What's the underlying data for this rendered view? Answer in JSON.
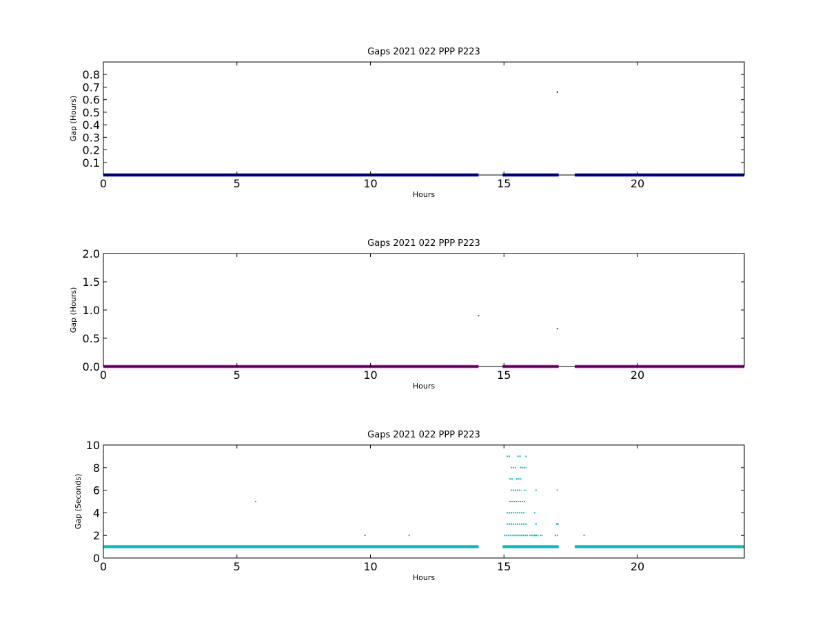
{
  "chart_data": [
    {
      "type": "scatter",
      "title": "Gaps 2021 022 PPP  P223",
      "xlabel": "Hours",
      "ylabel": "Gap (Hours)",
      "xlim": [
        0,
        24
      ],
      "ylim": [
        0,
        0.9
      ],
      "xticks": [
        "0",
        "5",
        "10",
        "15",
        "20"
      ],
      "xtick_values": [
        0,
        5,
        10,
        15,
        20
      ],
      "yticks": [
        "0.1",
        "0.2",
        "0.3",
        "0.4",
        "0.5",
        "0.6",
        "0.7",
        "0.8"
      ],
      "ytick_values": [
        0.1,
        0.2,
        0.3,
        0.4,
        0.5,
        0.6,
        0.7,
        0.8
      ],
      "grid": false,
      "color": "#0000cc",
      "series": [
        {
          "baseline_value": 0.0003,
          "baseline_ranges": [
            [
              0,
              14.05
            ],
            [
              14.95,
              17.05
            ],
            [
              17.65,
              24
            ]
          ],
          "points": [
            {
              "x": 5.7,
              "y": 0.003
            },
            {
              "x": 17.0,
              "y": 0.66
            }
          ]
        }
      ]
    },
    {
      "type": "scatter",
      "title": "Gaps 2021 022 PPP  P223",
      "xlabel": "Hours",
      "ylabel": "Gap (Hours)",
      "xlim": [
        0,
        24
      ],
      "ylim": [
        0,
        2.0
      ],
      "xticks": [
        "0",
        "5",
        "10",
        "15",
        "20"
      ],
      "xtick_values": [
        0,
        5,
        10,
        15,
        20
      ],
      "yticks": [
        "0.0",
        "0.5",
        "1.0",
        "1.5",
        "2.0"
      ],
      "ytick_values": [
        0,
        0.5,
        1.0,
        1.5,
        2.0
      ],
      "grid": false,
      "color": "#bf00bf",
      "series": [
        {
          "baseline_value": 0.0003,
          "baseline_ranges": [
            [
              0,
              14.05
            ],
            [
              14.95,
              17.05
            ],
            [
              17.65,
              24
            ]
          ],
          "points": [
            {
              "x": 14.05,
              "y": 0.9
            },
            {
              "x": 17.0,
              "y": 0.67
            }
          ]
        }
      ]
    },
    {
      "type": "scatter",
      "title": "Gaps 2021 022 PPP  P223",
      "xlabel": "Hours",
      "ylabel": "Gap (Seconds)",
      "xlim": [
        0,
        24
      ],
      "ylim": [
        0,
        10
      ],
      "xticks": [
        "0",
        "5",
        "10",
        "15",
        "20"
      ],
      "xtick_values": [
        0,
        5,
        10,
        15,
        20
      ],
      "yticks": [
        "0",
        "2",
        "4",
        "6",
        "8",
        "10"
      ],
      "ytick_values": [
        0,
        2,
        4,
        6,
        8,
        10
      ],
      "grid": false,
      "color": "#00bfbf",
      "series": [
        {
          "baseline_value": 1,
          "baseline_ranges": [
            [
              0,
              14.05
            ],
            [
              14.95,
              17.05
            ],
            [
              17.65,
              24
            ]
          ],
          "points": [
            {
              "x": 5.7,
              "y": 5
            },
            {
              "x": 9.8,
              "y": 2
            },
            {
              "x": 11.45,
              "y": 2
            },
            {
              "x": 18.0,
              "y": 2
            },
            {
              "x": 16.2,
              "y": 6
            },
            {
              "x": 17.0,
              "y": 6
            },
            {
              "x": 16.15,
              "y": 4
            },
            {
              "x": 16.2,
              "y": 3
            },
            {
              "x": 17.0,
              "y": 3
            },
            {
              "x": 16.15,
              "y": 2
            }
          ],
          "segments": [
            {
              "y": 9,
              "x0": 15.1,
              "x1": 15.25
            },
            {
              "y": 9,
              "x0": 15.5,
              "x1": 15.65
            },
            {
              "y": 9,
              "x0": 15.8,
              "x1": 15.85
            },
            {
              "y": 8,
              "x0": 15.25,
              "x1": 15.45
            },
            {
              "y": 8,
              "x0": 15.6,
              "x1": 15.85
            },
            {
              "y": 7,
              "x0": 15.2,
              "x1": 15.35
            },
            {
              "y": 7,
              "x0": 15.45,
              "x1": 15.65
            },
            {
              "y": 6,
              "x0": 15.25,
              "x1": 15.65
            },
            {
              "y": 6,
              "x0": 15.75,
              "x1": 15.85
            },
            {
              "y": 5,
              "x0": 15.2,
              "x1": 15.8
            },
            {
              "y": 4,
              "x0": 15.1,
              "x1": 15.8
            },
            {
              "y": 3,
              "x0": 15.1,
              "x1": 15.85
            },
            {
              "y": 3,
              "x0": 16.95,
              "x1": 17.05
            },
            {
              "y": 2,
              "x0": 15.0,
              "x1": 15.9
            },
            {
              "y": 2,
              "x0": 15.95,
              "x1": 16.3
            },
            {
              "y": 2,
              "x0": 16.35,
              "x1": 16.45
            },
            {
              "y": 2,
              "x0": 16.9,
              "x1": 17.05
            }
          ]
        }
      ]
    }
  ]
}
